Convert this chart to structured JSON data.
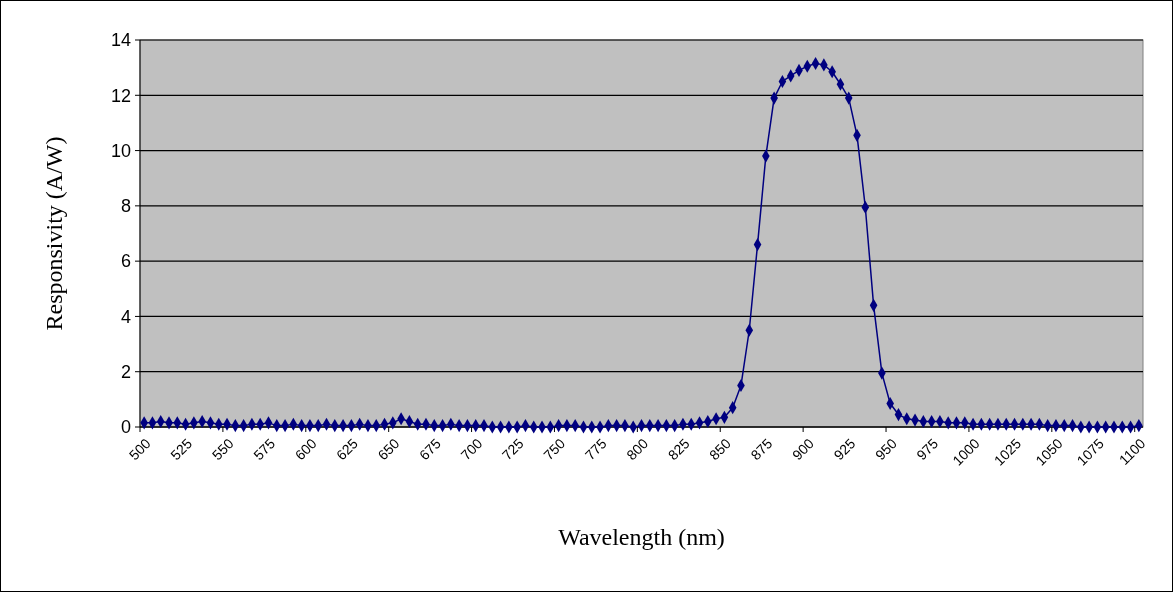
{
  "chart_data": {
    "type": "line",
    "xlabel": "Wavelength (nm)",
    "ylabel": "Responsivity (A/W)",
    "x": [
      500,
      505,
      510,
      515,
      520,
      525,
      530,
      535,
      540,
      545,
      550,
      555,
      560,
      565,
      570,
      575,
      580,
      585,
      590,
      595,
      600,
      605,
      610,
      615,
      620,
      625,
      630,
      635,
      640,
      645,
      650,
      655,
      660,
      665,
      670,
      675,
      680,
      685,
      690,
      695,
      700,
      705,
      710,
      715,
      720,
      725,
      730,
      735,
      740,
      745,
      750,
      755,
      760,
      765,
      770,
      775,
      780,
      785,
      790,
      795,
      800,
      805,
      810,
      815,
      820,
      825,
      830,
      835,
      840,
      845,
      850,
      855,
      860,
      865,
      870,
      875,
      880,
      885,
      890,
      895,
      900,
      905,
      910,
      915,
      920,
      925,
      930,
      935,
      940,
      945,
      950,
      955,
      960,
      965,
      970,
      975,
      980,
      985,
      990,
      995,
      1000,
      1005,
      1010,
      1015,
      1020,
      1025,
      1030,
      1035,
      1040,
      1045,
      1050,
      1055,
      1060,
      1065,
      1070,
      1075,
      1080,
      1085,
      1090,
      1095,
      1100
    ],
    "xlim": [
      497.5,
      1102.5
    ],
    "xticks": [
      {
        "value": 497.5,
        "label": null
      },
      500,
      525,
      {
        "value": 547.5,
        "label": null
      },
      550,
      575,
      {
        "value": 597.5,
        "label": null
      },
      600,
      625,
      {
        "value": 647.5,
        "label": null
      },
      650,
      675,
      {
        "value": 697.5,
        "label": null
      },
      700,
      725,
      {
        "value": 747.5,
        "label": null
      },
      750,
      775,
      {
        "value": 797.5,
        "label": null
      },
      800,
      825,
      {
        "value": 847.5,
        "label": null
      },
      850,
      875,
      {
        "value": 897.5,
        "label": null
      },
      900,
      925,
      {
        "value": 947.5,
        "label": null
      },
      950,
      975,
      {
        "value": 997.5,
        "label": null
      },
      1000,
      1025,
      {
        "value": 1047.5,
        "label": null
      },
      1050,
      1075,
      {
        "value": 1097.5,
        "label": null
      },
      1100
    ],
    "series": [
      {
        "color": "#000080",
        "values": [
          0.15,
          0.15,
          0.2,
          0.15,
          0.15,
          0.1,
          0.15,
          0.2,
          0.15,
          0.1,
          0.1,
          0.05,
          0.05,
          0.1,
          0.1,
          0.15,
          0.05,
          0.05,
          0.1,
          0.05,
          0.05,
          0.05,
          0.1,
          0.05,
          0.05,
          0.05,
          0.1,
          0.05,
          0.05,
          0.1,
          0.15,
          0.3,
          0.2,
          0.1,
          0.1,
          0.05,
          0.05,
          0.1,
          0.05,
          0.05,
          0.05,
          0.05,
          0,
          0,
          0,
          0,
          0.05,
          0,
          0,
          0,
          0.05,
          0.05,
          0.05,
          0,
          0,
          0,
          0.05,
          0.05,
          0.05,
          0,
          0.05,
          0.05,
          0.05,
          0.05,
          0.05,
          0.1,
          0.1,
          0.15,
          0.2,
          0.3,
          0.35,
          0.7,
          1.5,
          3.5,
          6.6,
          9.8,
          11.9,
          12.5,
          12.7,
          12.9,
          13.05,
          13.15,
          13.1,
          12.85,
          12.4,
          11.9,
          10.55,
          7.95,
          4.4,
          1.95,
          0.85,
          0.45,
          0.3,
          0.25,
          0.2,
          0.2,
          0.2,
          0.15,
          0.15,
          0.15,
          0.1,
          0.1,
          0.1,
          0.1,
          0.1,
          0.1,
          0.1,
          0.1,
          0.1,
          0.05,
          0.05,
          0.05,
          0.05,
          0,
          0,
          0,
          0,
          0,
          0,
          0,
          0.05
        ]
      }
    ],
    "ylim": [
      0,
      14
    ],
    "yticks": [
      0,
      2,
      4,
      6,
      8,
      10,
      12,
      14
    ],
    "grid": "y",
    "marker": "diamond",
    "line_style": "solid"
  }
}
